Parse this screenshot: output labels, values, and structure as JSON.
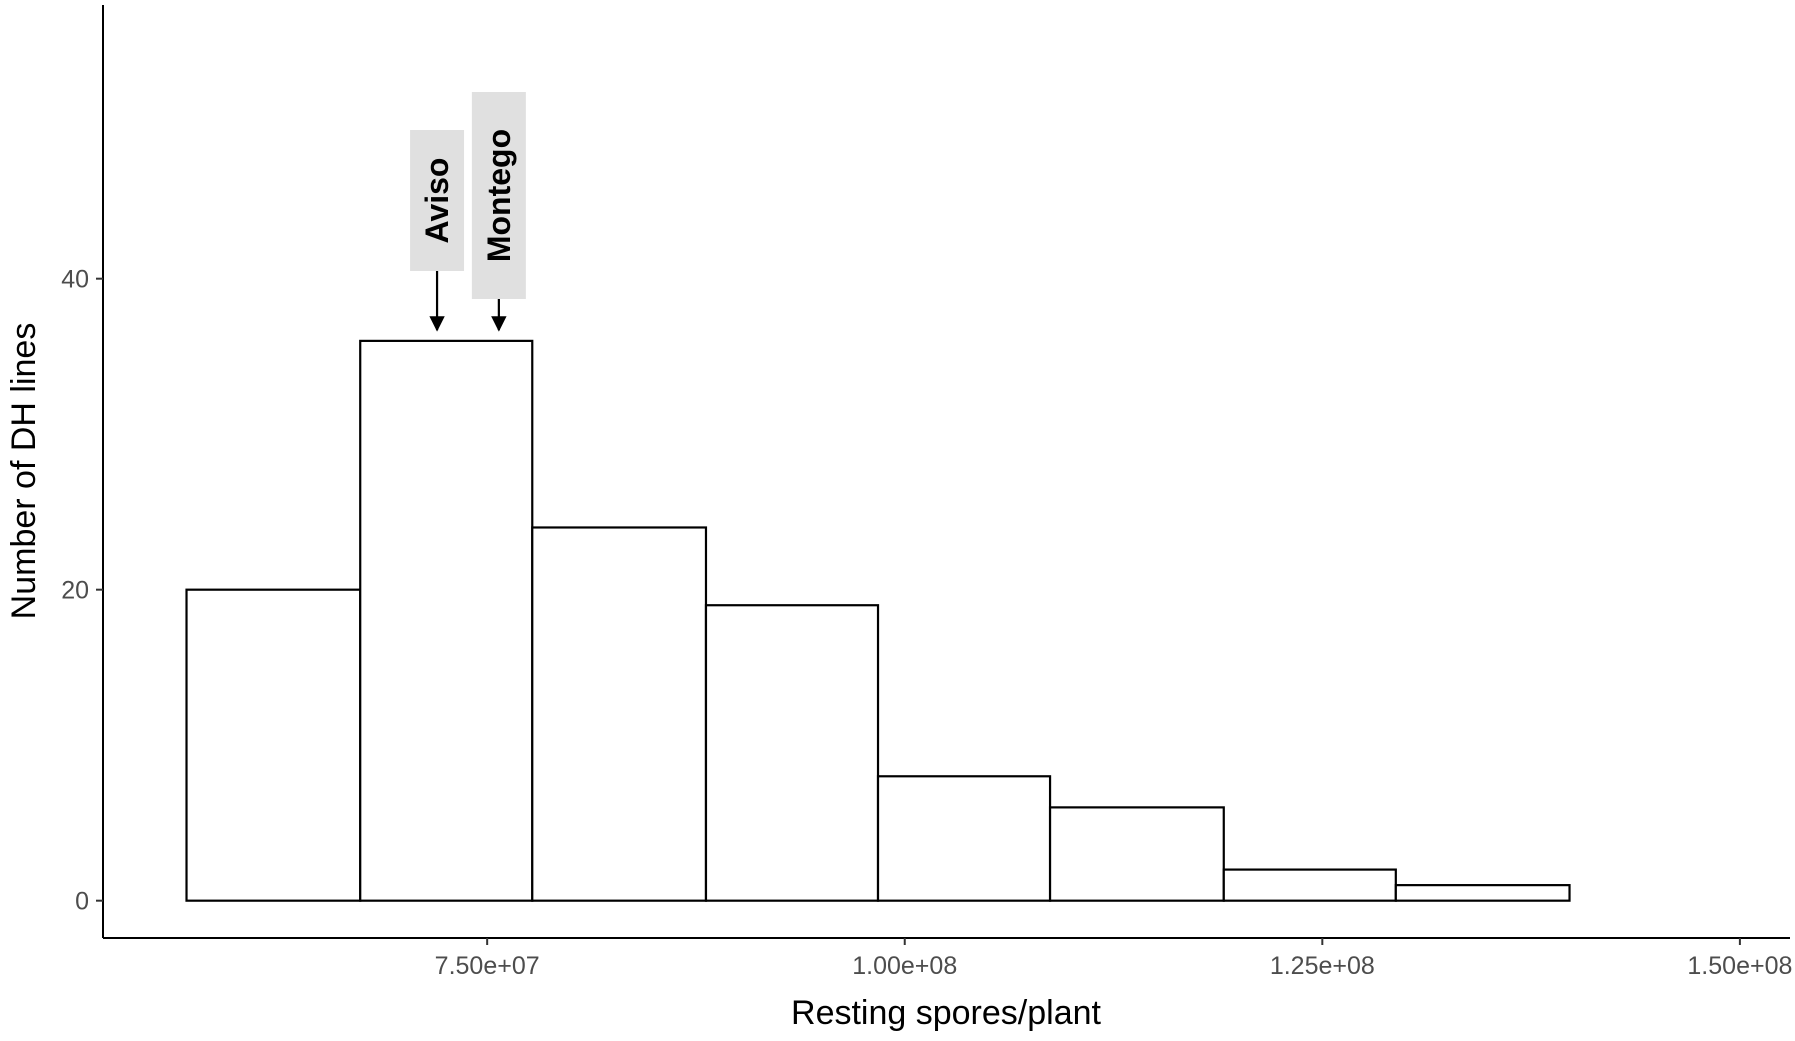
{
  "chart_data": {
    "type": "bar",
    "subtype": "histogram",
    "xlabel": "Resting spores/plant",
    "ylabel": "Number of DH lines",
    "xlim": [
      52000000,
      153000000
    ],
    "ylim": [
      -2.4,
      57.6
    ],
    "x_ticks": [
      {
        "value": 75000000,
        "label": "7.50e+07"
      },
      {
        "value": 100000000,
        "label": "1.00e+08"
      },
      {
        "value": 125000000,
        "label": "1.25e+08"
      },
      {
        "value": 150000000,
        "label": "1.50e+08"
      }
    ],
    "y_ticks": [
      {
        "value": 0,
        "label": "0"
      },
      {
        "value": 20,
        "label": "20"
      },
      {
        "value": 40,
        "label": "40"
      }
    ],
    "bins": [
      {
        "x0": 57000000,
        "x1": 67400000,
        "count": 20
      },
      {
        "x0": 67400000,
        "x1": 77700000,
        "count": 36
      },
      {
        "x0": 77700000,
        "x1": 88100000,
        "count": 24
      },
      {
        "x0": 88100000,
        "x1": 98400000,
        "count": 19
      },
      {
        "x0": 98400000,
        "x1": 108700000,
        "count": 8
      },
      {
        "x0": 108700000,
        "x1": 119100000,
        "count": 6
      },
      {
        "x0": 119100000,
        "x1": 129400000,
        "count": 2
      },
      {
        "x0": 129400000,
        "x1": 139800000,
        "count": 1
      }
    ],
    "annotations": [
      {
        "label": "Aviso",
        "x": 72000000,
        "arrow_tip_y": 36.5
      },
      {
        "label": "Montego",
        "x": 75700000,
        "arrow_tip_y": 36.5
      }
    ],
    "bar_fill": "#ffffff",
    "bar_stroke": "#000000",
    "label_box_fill": "#e0e0e0",
    "grid": false,
    "legend": "none"
  }
}
